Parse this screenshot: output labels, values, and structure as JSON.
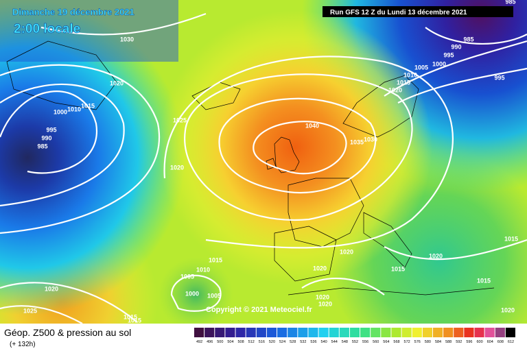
{
  "header": {
    "date": "Dimanche 19 décembre 2021",
    "time": "2:00 locale",
    "run": "Run GFS 12 Z du Lundi 13 décembre 2021"
  },
  "copyright": "Copyright © 2021 Meteociel.fr",
  "footer": {
    "title": "Géop. Z500 & pression au sol",
    "lead": "(+ 132h)"
  },
  "scale": {
    "labels": [
      "492",
      "496",
      "500",
      "504",
      "508",
      "512",
      "516",
      "520",
      "524",
      "528",
      "532",
      "536",
      "540",
      "544",
      "548",
      "552",
      "556",
      "560",
      "564",
      "568",
      "572",
      "576",
      "580",
      "584",
      "588",
      "592",
      "596",
      "600",
      "604",
      "608",
      "612"
    ]
  },
  "isobar_labels": [
    "1030",
    "1020",
    "1015",
    "1010",
    "1000",
    "995",
    "990",
    "985",
    "1025",
    "1020",
    "1040",
    "1035",
    "1030",
    "1020",
    "1015",
    "1010",
    "1005",
    "1000",
    "995",
    "990",
    "985",
    "995",
    "985",
    "1015",
    "1020",
    "1015",
    "1020",
    "1020",
    "1015",
    "1010",
    "1005",
    "1000",
    "1005",
    "1020",
    "1025",
    "1015",
    "1015",
    "1020",
    "1020",
    "1015",
    "1020"
  ]
}
